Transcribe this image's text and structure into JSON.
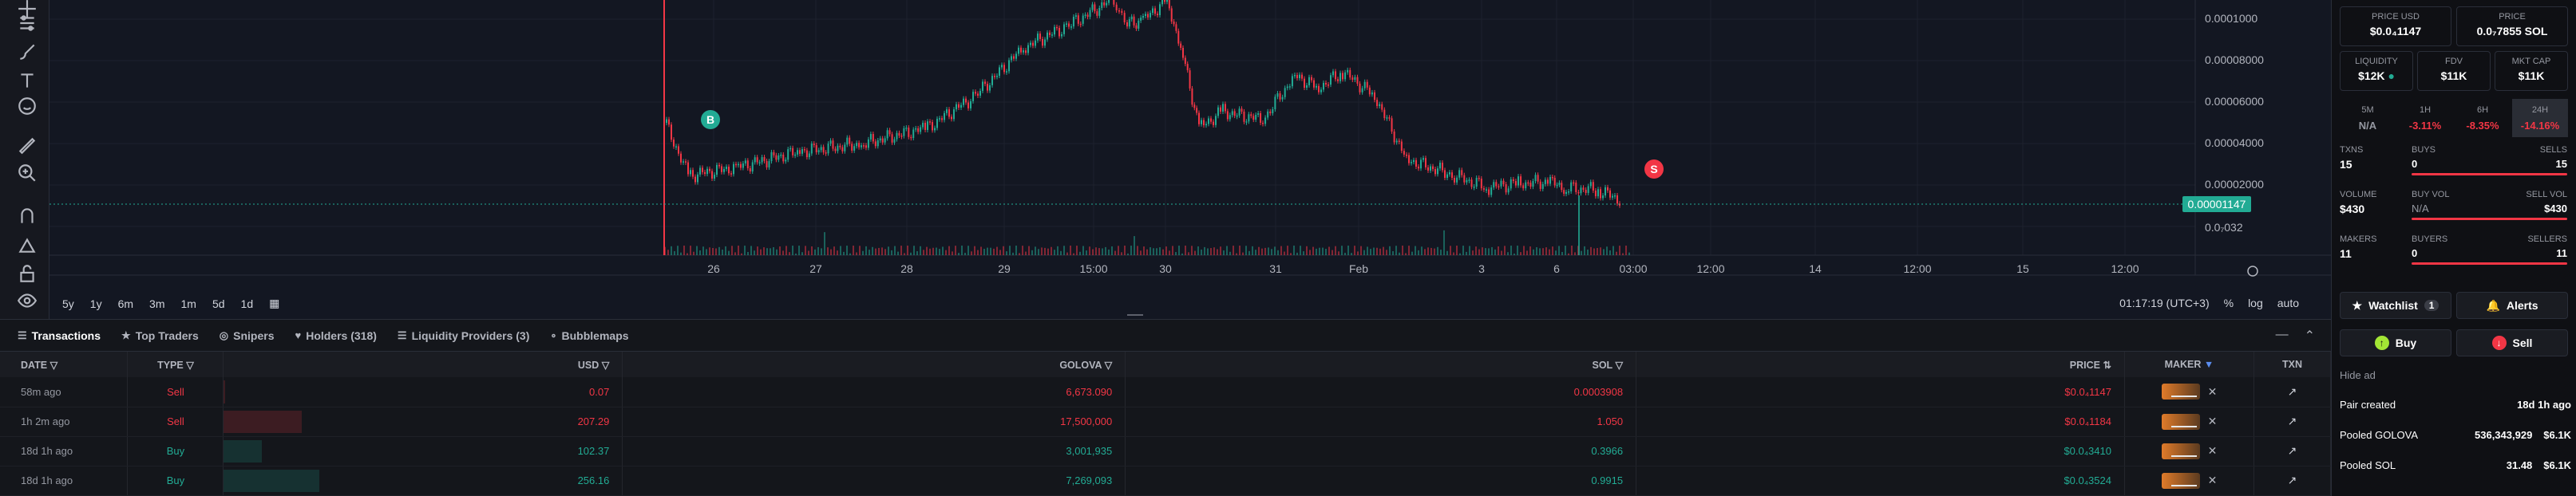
{
  "chart": {
    "y_labels": [
      "0.0001000",
      "0.00008000",
      "0.00006000",
      "0.00004000",
      "0.00002000",
      "0.0₇032"
    ],
    "current_price_tag": "0.00001147",
    "x_labels": [
      "26",
      "27",
      "28",
      "29",
      "15:00",
      "30",
      "31",
      "Feb",
      "3",
      "6",
      "03:00",
      "12:00",
      "14",
      "12:00",
      "15",
      "12:00"
    ],
    "buy_marker": "B",
    "sell_marker": "S",
    "timeframes": [
      "5y",
      "1y",
      "6m",
      "3m",
      "1m",
      "5d",
      "1d"
    ],
    "clock": "01:17:19 (UTC+3)",
    "scale_opts": [
      "%",
      "log",
      "auto"
    ],
    "colors": {
      "up": "#22ab94",
      "down": "#f23645",
      "bg": "#131722"
    }
  },
  "tabs": [
    {
      "label": "Transactions",
      "icon": "list-icon"
    },
    {
      "label": "Top Traders",
      "icon": "trophy-icon"
    },
    {
      "label": "Snipers",
      "icon": "crosshair-icon"
    },
    {
      "label": "Holders (318)",
      "icon": "heart-icon"
    },
    {
      "label": "Liquidity Providers (3)",
      "icon": "list-icon"
    },
    {
      "label": "Bubblemaps",
      "icon": "bubble-icon"
    }
  ],
  "table": {
    "headers": {
      "date": "DATE",
      "type": "TYPE",
      "usd": "USD",
      "golova": "GOLOVA",
      "sol": "SOL",
      "price": "PRICE",
      "maker": "MAKER",
      "txn": "TXN"
    },
    "rows": [
      {
        "date": "58m ago",
        "type": "Sell",
        "usd": "0.07",
        "golova": "6,673.090",
        "sol": "0.0003908",
        "price": "$0.0₄1147",
        "side": "sell",
        "vol": 0.01
      },
      {
        "date": "1h 2m ago",
        "type": "Sell",
        "usd": "207.29",
        "golova": "17,500,000",
        "sol": "1.050",
        "price": "$0.0₄1184",
        "side": "sell",
        "vol": 0.81
      },
      {
        "date": "18d 1h ago",
        "type": "Buy",
        "usd": "102.37",
        "golova": "3,001,935",
        "sol": "0.3966",
        "price": "$0.0₄3410",
        "side": "buy",
        "vol": 0.4
      },
      {
        "date": "18d 1h ago",
        "type": "Buy",
        "usd": "256.16",
        "golova": "7,269,093",
        "sol": "0.9915",
        "price": "$0.0₄3524",
        "side": "buy",
        "vol": 1.0
      }
    ]
  },
  "panel": {
    "price_usd_label": "PRICE USD",
    "price_usd": "$0.0₄1147",
    "price_sol_label": "PRICE",
    "price_sol": "0.0₇7855 SOL",
    "liquidity_label": "LIQUIDITY",
    "liquidity": "$12K",
    "fdv_label": "FDV",
    "fdv": "$11K",
    "mktcap_label": "MKT CAP",
    "mktcap": "$11K",
    "changes": [
      {
        "label": "5M",
        "value": "N/A"
      },
      {
        "label": "1H",
        "value": "-3.11%"
      },
      {
        "label": "6H",
        "value": "-8.35%"
      },
      {
        "label": "24H",
        "value": "-14.16%"
      }
    ],
    "txns_label": "TXNS",
    "txns": "15",
    "buys_label": "BUYS",
    "buys": "0",
    "sells_label": "SELLS",
    "sells": "15",
    "volume_label": "VOLUME",
    "volume": "$430",
    "buy_vol_label": "BUY VOL",
    "buy_vol": "N/A",
    "sell_vol_label": "SELL VOL",
    "sell_vol": "$430",
    "makers_label": "MAKERS",
    "makers": "11",
    "buyers_label": "BUYERS",
    "buyers": "0",
    "sellers_label": "SELLERS",
    "sellers": "11",
    "watchlist": "Watchlist",
    "watchlist_count": "1",
    "alerts": "Alerts",
    "buy": "Buy",
    "sell": "Sell",
    "hide_ad": "Hide ad",
    "pair_created_label": "Pair created",
    "pair_created": "18d 1h ago",
    "pooled_golova_label": "Pooled GOLOVA",
    "pooled_golova": "536,343,929",
    "pooled_golova_usd": "$6.1K",
    "pooled_sol_label": "Pooled SOL",
    "pooled_sol": "31.48",
    "pooled_sol_usd": "$6.1K"
  }
}
